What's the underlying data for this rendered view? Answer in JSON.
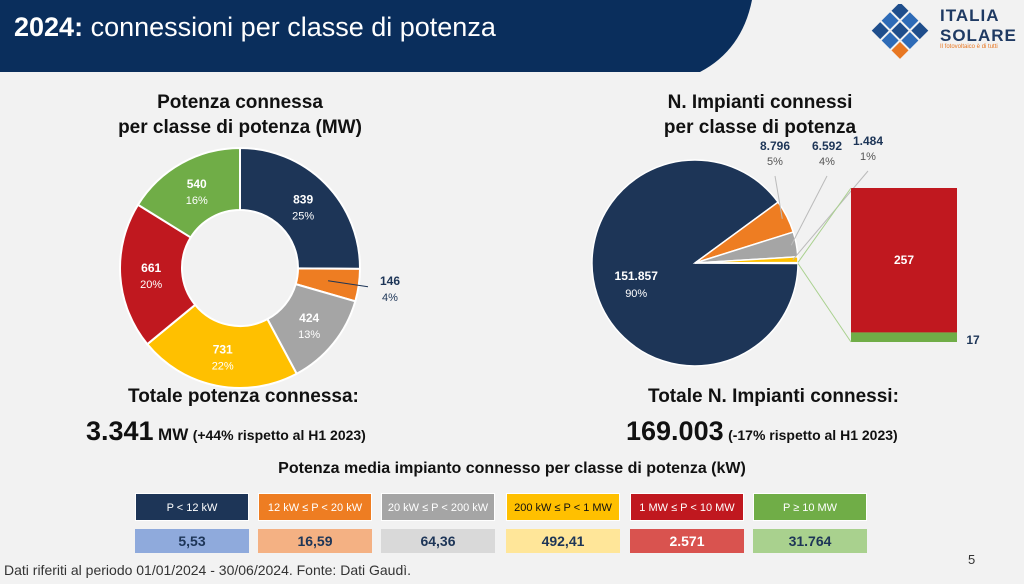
{
  "header": {
    "year": "2024:",
    "title": "connessioni per classe di potenza"
  },
  "logo": {
    "line1": "ITALIA",
    "line2": "SOLARE",
    "tagline": "Il fotovoltaico è di tutti"
  },
  "page_number": "5",
  "footer": "Dati riferiti al periodo 01/01/2024 - 30/06/2024. Fonte: Dati Gaudì.",
  "colors": {
    "header": "#0a2e5c",
    "navy": "#1d3557",
    "orange": "#ee7d22",
    "gray": "#a5a5a5",
    "yellow": "#ffc000",
    "red": "#c0181f",
    "green": "#70ad47"
  },
  "left": {
    "title_line1": "Potenza connessa",
    "title_line2": "per classe di potenza (MW)",
    "total_label": "Totale potenza connessa:",
    "total_value": "3.341",
    "total_unit": "MW",
    "total_note": "(+44% rispetto al H1 2023)"
  },
  "right": {
    "title_line1": "N. Impianti connessi",
    "title_line2": "per classe di potenza",
    "total_label": "Totale N. Impianti connessi:",
    "total_value": "169.003",
    "total_note": "(-17% rispetto al H1 2023)"
  },
  "avg_section": {
    "title": "Potenza media impianto connesso per classe di potenza (kW)",
    "classes": [
      "P < 12 kW",
      "12 kW ≤ P < 20 kW",
      "20 kW ≤ P < 200 kW",
      "200 kW ≤ P < 1 MW",
      "1 MW ≤ P < 10 MW",
      "P ≥ 10 MW"
    ],
    "values": [
      "5,53",
      "16,59",
      "64,36",
      "492,41",
      "2.571",
      "31.764"
    ]
  },
  "chart_data": [
    {
      "type": "pie",
      "variant": "donut",
      "title": "Potenza connessa per classe di potenza (MW)",
      "categories": [
        "P < 12 kW",
        "12 kW ≤ P < 20 kW",
        "20 kW ≤ P < 200 kW",
        "200 kW ≤ P < 1 MW",
        "1 MW ≤ P < 10 MW",
        "P ≥ 10 MW"
      ],
      "values": [
        839,
        146,
        424,
        731,
        661,
        540
      ],
      "value_labels": [
        "839",
        "146",
        "424",
        "731",
        "661",
        "540"
      ],
      "percent_labels": [
        "25%",
        "4%",
        "13%",
        "22%",
        "20%",
        "16%"
      ]
    },
    {
      "type": "pie",
      "variant": "pie-of-bar",
      "title": "N. Impianti connessi per classe di potenza",
      "categories": [
        "P < 12 kW",
        "12 kW ≤ P < 20 kW",
        "20 kW ≤ P < 200 kW",
        "200 kW ≤ P < 1 MW",
        "1 MW ≤ P < 10 MW",
        "P ≥ 10 MW"
      ],
      "values": [
        151857,
        8796,
        6592,
        1484,
        257,
        17
      ],
      "value_labels": [
        "151.857",
        "8.796",
        "6.592",
        "1.484",
        "257",
        "17"
      ],
      "percent_labels": [
        "90%",
        "5%",
        "4%",
        "1%",
        "",
        ""
      ],
      "bar_breakout": [
        "1 MW ≤ P < 10 MW",
        "P ≥ 10 MW"
      ]
    }
  ]
}
